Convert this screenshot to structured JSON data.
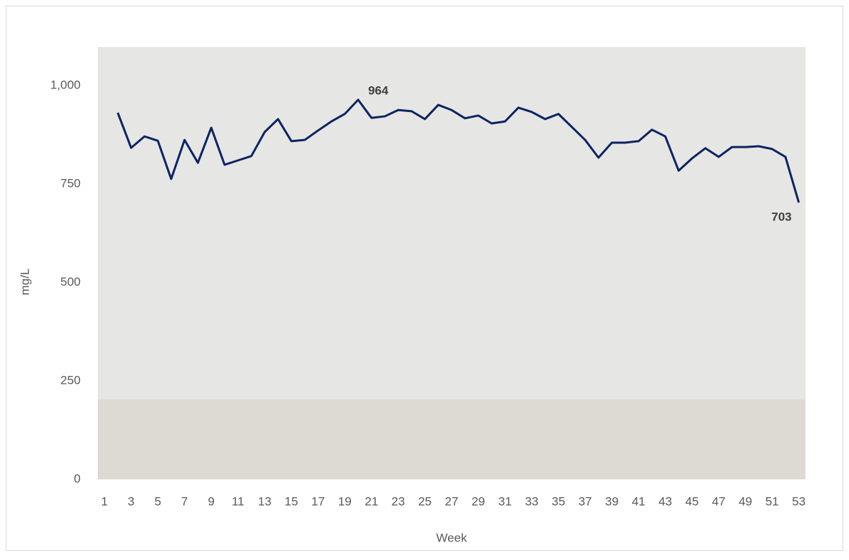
{
  "chart_data": {
    "type": "line",
    "x_label": "Week",
    "y_label": "mg/L",
    "x": [
      2,
      3,
      4,
      5,
      6,
      7,
      8,
      9,
      10,
      11,
      12,
      13,
      14,
      15,
      16,
      17,
      18,
      19,
      20,
      21,
      22,
      23,
      24,
      25,
      26,
      27,
      28,
      29,
      30,
      31,
      32,
      33,
      34,
      35,
      36,
      37,
      38,
      39,
      40,
      41,
      42,
      43,
      44,
      45,
      46,
      47,
      48,
      49,
      50,
      51,
      52,
      53
    ],
    "values": [
      931,
      842,
      871,
      860,
      763,
      862,
      804,
      893,
      799,
      810,
      821,
      882,
      915,
      859,
      862,
      886,
      909,
      928,
      964,
      918,
      922,
      938,
      935,
      915,
      951,
      938,
      917,
      924,
      904,
      909,
      944,
      933,
      915,
      928,
      895,
      862,
      817,
      855,
      855,
      859,
      888,
      871,
      784,
      815,
      841,
      819,
      844,
      844,
      846,
      839,
      819,
      703
    ],
    "color": "#0c2461",
    "labeled_points": [
      18,
      51
    ],
    "xlim": [
      0.5,
      53.5
    ],
    "xticks": [
      1,
      3,
      5,
      7,
      9,
      11,
      13,
      15,
      17,
      19,
      21,
      23,
      25,
      27,
      29,
      31,
      33,
      35,
      37,
      39,
      41,
      43,
      45,
      47,
      49,
      51,
      53
    ],
    "ylim": [
      0,
      1100
    ],
    "yticks": [
      0,
      250,
      500,
      750,
      {
        "value": 1000,
        "label": "1,000"
      }
    ],
    "grid": false
  }
}
